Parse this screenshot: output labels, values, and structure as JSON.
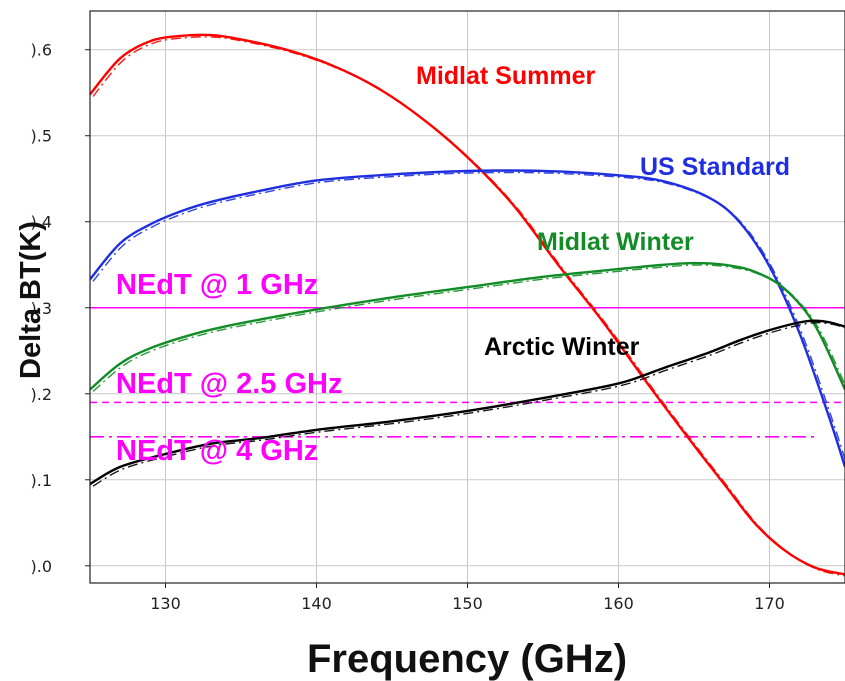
{
  "chart_data": {
    "type": "line",
    "xlabel": "Frequency (GHz)",
    "ylabel": "Delta BT(K)",
    "xlim": [
      125,
      175
    ],
    "ylim": [
      -0.02,
      0.645
    ],
    "grid": true,
    "x_ticks": [
      130,
      140,
      150,
      160,
      170
    ],
    "x_tick_labels": [
      "130",
      "140",
      "150",
      "160",
      "170"
    ],
    "y_ticks": [
      0.0,
      0.1,
      0.2,
      0.3,
      0.4,
      0.5,
      0.6
    ],
    "y_tick_labels": [
      ").0",
      ").1",
      ").2",
      ").3",
      ").4",
      ").5",
      ").6"
    ],
    "series": [
      {
        "name": "Midlat Summer",
        "color": "#ff0000",
        "x": [
          125,
          127,
          129,
          131,
          133,
          135,
          138,
          141,
          144,
          147,
          150,
          153,
          156,
          159,
          162,
          165,
          167,
          169,
          171,
          173,
          175
        ],
        "y": [
          0.548,
          0.59,
          0.61,
          0.616,
          0.617,
          0.612,
          0.6,
          0.582,
          0.556,
          0.52,
          0.475,
          0.42,
          0.35,
          0.283,
          0.21,
          0.14,
          0.095,
          0.05,
          0.018,
          -0.002,
          -0.01
        ]
      },
      {
        "name": "US Standard",
        "color": "#1f2fe0",
        "x": [
          125,
          127,
          129,
          131,
          133,
          136,
          140,
          145,
          150,
          155,
          160,
          163,
          166,
          168,
          170,
          172,
          174,
          175
        ],
        "y": [
          0.333,
          0.375,
          0.397,
          0.412,
          0.423,
          0.435,
          0.448,
          0.455,
          0.459,
          0.459,
          0.454,
          0.447,
          0.428,
          0.4,
          0.348,
          0.27,
          0.17,
          0.115
        ]
      },
      {
        "name": "Midlat Winter",
        "color": "#128c26",
        "x": [
          125,
          127,
          129,
          132,
          135,
          140,
          145,
          150,
          155,
          160,
          163,
          165,
          167,
          169,
          171,
          173,
          175
        ],
        "y": [
          0.205,
          0.235,
          0.253,
          0.27,
          0.282,
          0.298,
          0.312,
          0.324,
          0.336,
          0.345,
          0.35,
          0.352,
          0.35,
          0.342,
          0.322,
          0.28,
          0.205
        ]
      },
      {
        "name": "Arctic Winter",
        "color": "#000000",
        "x": [
          125,
          127,
          130,
          133,
          136,
          140,
          145,
          150,
          155,
          160,
          163,
          166,
          168,
          170,
          172,
          173,
          174,
          175
        ],
        "y": [
          0.095,
          0.115,
          0.13,
          0.142,
          0.148,
          0.158,
          0.168,
          0.18,
          0.195,
          0.212,
          0.23,
          0.248,
          0.262,
          0.274,
          0.283,
          0.285,
          0.283,
          0.278
        ]
      }
    ],
    "thresholds": [
      {
        "label": "NEdT @ 1 GHz",
        "y": 0.3,
        "style": "solid",
        "color": "#ff00ff"
      },
      {
        "label": "NEdT @ 2.5 GHz",
        "y": 0.19,
        "style": "dashed",
        "color": "#ff00ff"
      },
      {
        "label": "NEdT @ 4 GHz",
        "y": 0.15,
        "style": "dashdot",
        "color": "#ff00ff"
      }
    ]
  }
}
